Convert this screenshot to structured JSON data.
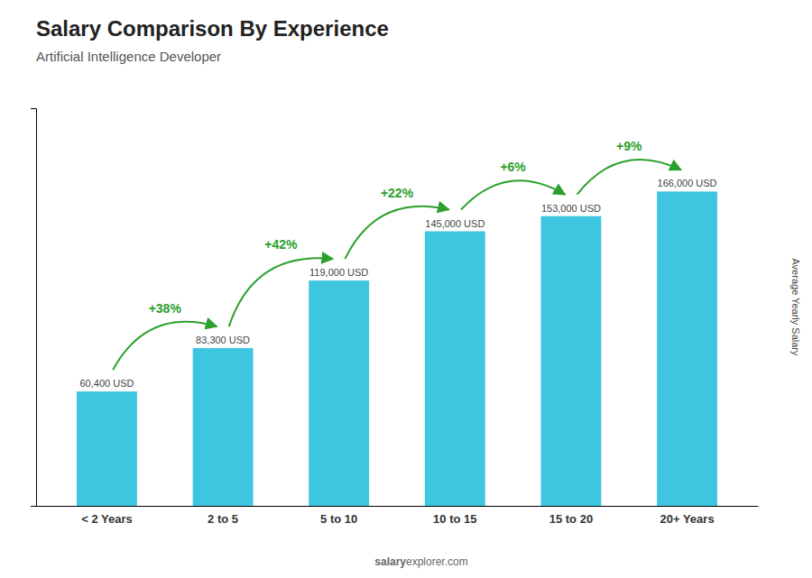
{
  "chart_data": {
    "type": "bar",
    "title": "Salary Comparison By Experience",
    "subtitle": "Artificial Intelligence Developer",
    "ylabel": "Average Yearly Salary",
    "categories": [
      "< 2 Years",
      "2 to 5",
      "5 to 10",
      "10 to 15",
      "15 to 20",
      "20+ Years"
    ],
    "values": [
      60400,
      83300,
      119000,
      145000,
      153000,
      166000
    ],
    "value_labels": [
      "60,400 USD",
      "83,300 USD",
      "119,000 USD",
      "145,000 USD",
      "153,000 USD",
      "166,000 USD"
    ],
    "data_labels": true,
    "annotations": [
      null,
      "+38%",
      "+42%",
      "+22%",
      "+6%",
      "+9%"
    ],
    "color": "#3ec6e0",
    "ylim": [
      0,
      210000
    ],
    "yticks": [],
    "tick_labels": "x",
    "grid": false,
    "watermark": [
      "salary",
      "explorer.com"
    ]
  }
}
